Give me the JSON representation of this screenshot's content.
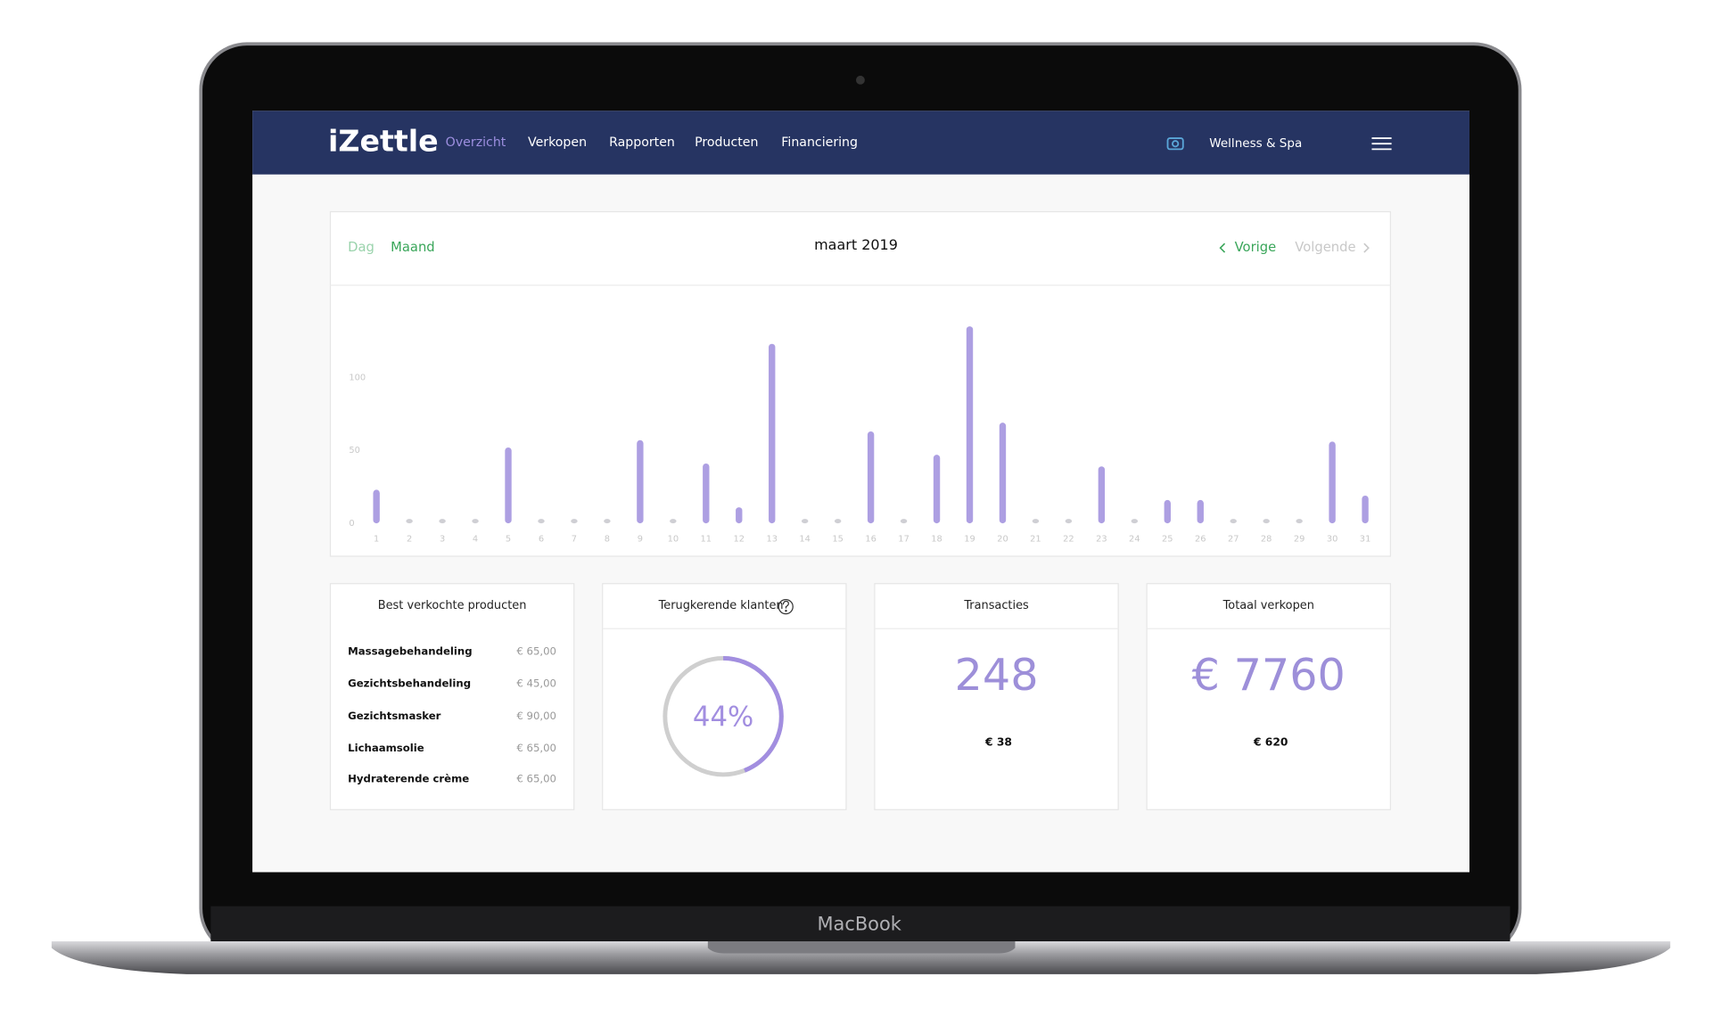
{
  "nav": {
    "logo": "iZettle",
    "items": [
      "Overzicht",
      "Verkopen",
      "Rapporten",
      "Producten",
      "Financiering"
    ],
    "account": "Wellness & Spa"
  },
  "period": {
    "tabs": [
      "Dag",
      "Maand"
    ],
    "title": "maart 2019",
    "prev": "Vorige",
    "next": "Volgende"
  },
  "chart_data": {
    "type": "bar",
    "categories": [
      "1",
      "2",
      "3",
      "4",
      "5",
      "6",
      "7",
      "8",
      "9",
      "10",
      "11",
      "12",
      "13",
      "14",
      "15",
      "16",
      "17",
      "18",
      "19",
      "20",
      "21",
      "22",
      "23",
      "24",
      "25",
      "26",
      "27",
      "28",
      "29",
      "30",
      "31"
    ],
    "values": [
      23,
      0,
      0,
      0,
      52,
      0,
      0,
      0,
      57,
      0,
      41,
      11,
      123,
      0,
      0,
      63,
      0,
      47,
      135,
      69,
      0,
      0,
      39,
      0,
      16,
      16,
      0,
      0,
      0,
      56,
      19
    ],
    "color": "#ad9fe2",
    "ylim": [
      0,
      140
    ],
    "yticks": [
      0,
      50,
      100
    ]
  },
  "cards": {
    "products": {
      "title": "Best verkochte producten",
      "rows": [
        [
          "Massagebehandeling",
          "€ 65,00"
        ],
        [
          "Gezichtsbehandeling",
          "€ 45,00"
        ],
        [
          "Gezichtsmasker",
          "€ 90,00"
        ],
        [
          "Lichaamsolie",
          "€ 65,00"
        ],
        [
          "Hydraterende crème",
          "€ 65,00"
        ]
      ]
    },
    "returning": {
      "title": "Terugkerende klanten",
      "value": 44,
      "label": "44%"
    },
    "transactions": {
      "title": "Transacties",
      "value": "248",
      "sub": "€ 38"
    },
    "sales": {
      "title": "Totaal verkopen",
      "value": "€ 7760",
      "sub": "€ 620"
    }
  },
  "device": "MacBook"
}
